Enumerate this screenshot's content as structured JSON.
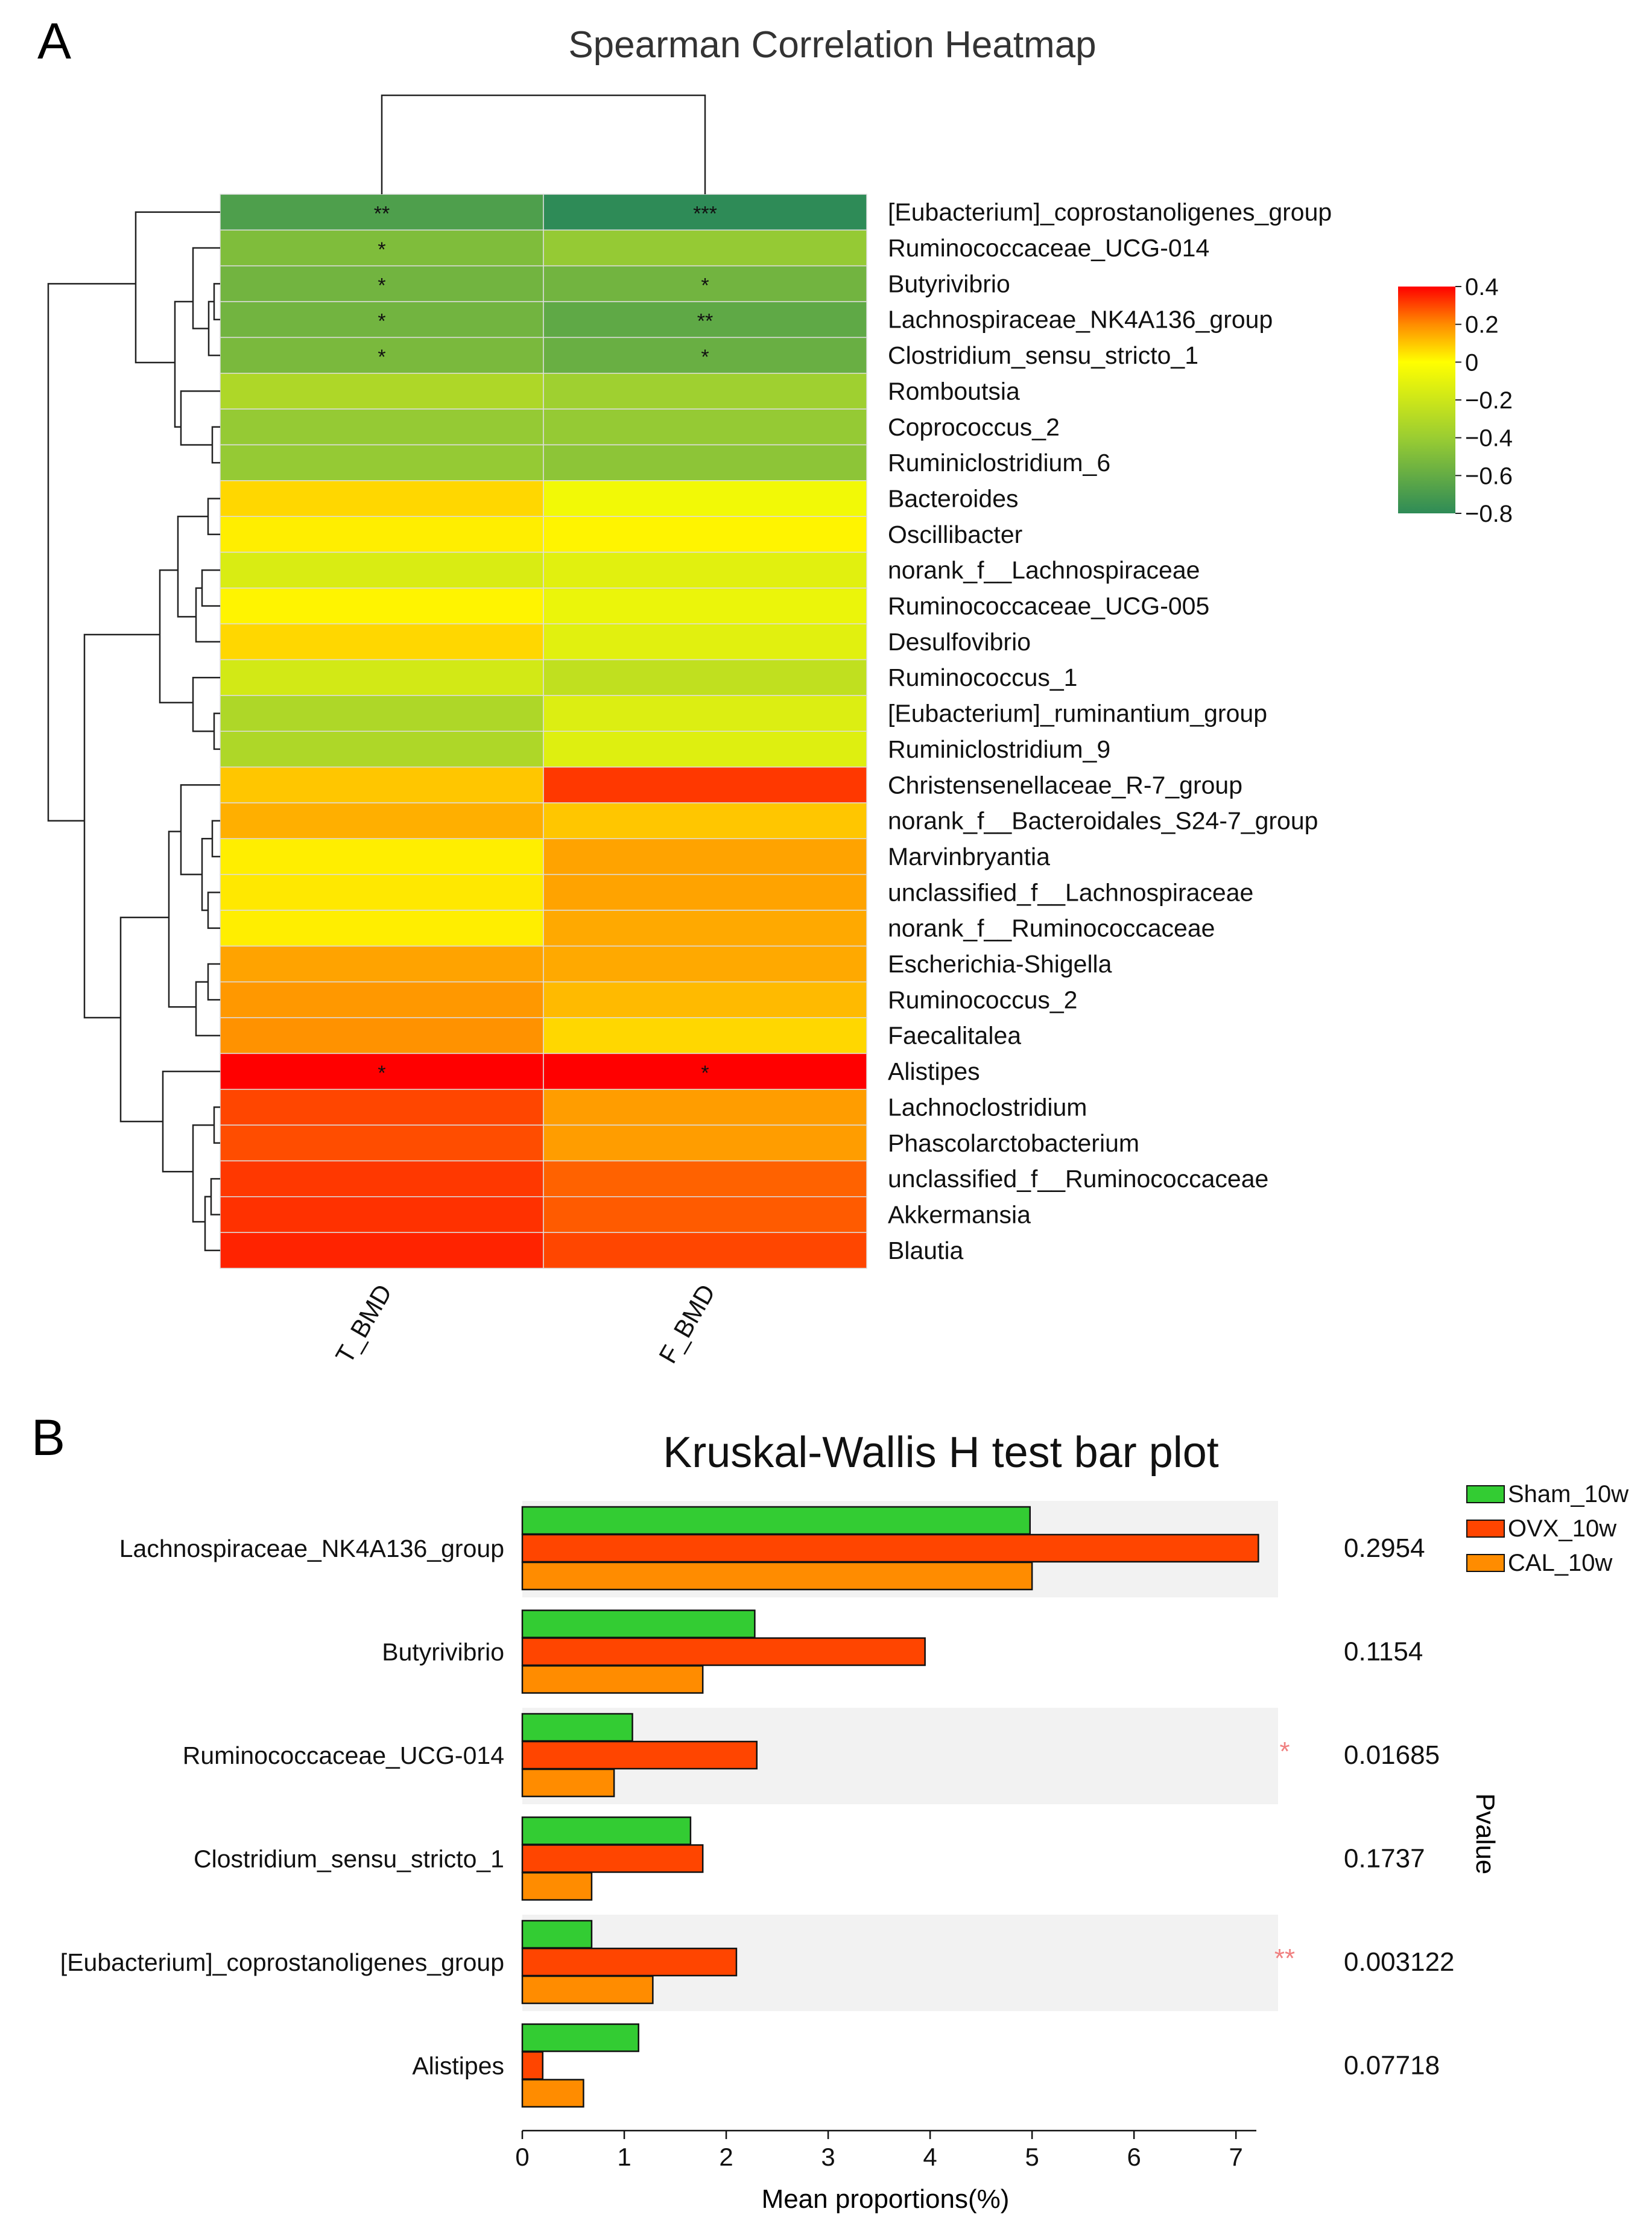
{
  "panel_a_label": "A",
  "panel_b_label": "B",
  "chart_data": [
    {
      "type": "heatmap",
      "title": "Spearman Correlation Heatmap",
      "columns": [
        "T_BMD",
        "F_BMD"
      ],
      "rows": [
        "[Eubacterium]_coprostanoligenes_group",
        "Ruminococcaceae_UCG-014",
        "Butyrivibrio",
        "Lachnospiraceae_NK4A136_group",
        "Clostridium_sensu_stricto_1",
        "Romboutsia",
        "Coprococcus_2",
        "Ruminiclostridium_6",
        "Bacteroides",
        "Oscillibacter",
        "norank_f__Lachnospiraceae",
        "Ruminococcaceae_UCG-005",
        "Desulfovibrio",
        "Ruminococcus_1",
        "[Eubacterium]_ruminantium_group",
        "Ruminiclostridium_9",
        "Christensenellaceae_R-7_group",
        "norank_f__Bacteroidales_S24-7_group",
        "Marvinbryantia",
        "unclassified_f__Lachnospiraceae",
        "norank_f__Ruminococcaceae",
        "Escherichia-Shigella",
        "Ruminococcus_2",
        "Faecalitalea",
        "Alistipes",
        "Lachnoclostridium",
        "Phascolarctobacterium",
        "unclassified_f__Ruminococcaceae",
        "Akkermansia",
        "Blautia"
      ],
      "values": [
        [
          -0.68,
          -0.8
        ],
        [
          -0.5,
          -0.42
        ],
        [
          -0.55,
          -0.55
        ],
        [
          -0.55,
          -0.62
        ],
        [
          -0.52,
          -0.58
        ],
        [
          -0.32,
          -0.38
        ],
        [
          -0.42,
          -0.42
        ],
        [
          -0.42,
          -0.45
        ],
        [
          0.07,
          -0.05
        ],
        [
          0.03,
          0.02
        ],
        [
          -0.15,
          -0.12
        ],
        [
          0.02,
          -0.08
        ],
        [
          0.07,
          -0.12
        ],
        [
          -0.18,
          -0.25
        ],
        [
          -0.32,
          -0.14
        ],
        [
          -0.32,
          -0.13
        ],
        [
          0.1,
          0.32
        ],
        [
          0.14,
          0.1
        ],
        [
          0.03,
          0.16
        ],
        [
          0.04,
          0.16
        ],
        [
          0.03,
          0.15
        ],
        [
          0.16,
          0.15
        ],
        [
          0.18,
          0.12
        ],
        [
          0.19,
          0.07
        ],
        [
          0.43,
          0.43
        ],
        [
          0.3,
          0.17
        ],
        [
          0.29,
          0.17
        ],
        [
          0.32,
          0.26
        ],
        [
          0.33,
          0.27
        ],
        [
          0.35,
          0.3
        ]
      ],
      "significance": [
        [
          "**",
          "***"
        ],
        [
          "*",
          ""
        ],
        [
          "*",
          "*"
        ],
        [
          "*",
          "**"
        ],
        [
          "*",
          "*"
        ],
        [
          "",
          ""
        ],
        [
          "",
          ""
        ],
        [
          "",
          ""
        ],
        [
          "",
          ""
        ],
        [
          "",
          ""
        ],
        [
          "",
          ""
        ],
        [
          "",
          ""
        ],
        [
          "",
          ""
        ],
        [
          "",
          ""
        ],
        [
          "",
          ""
        ],
        [
          "",
          ""
        ],
        [
          "",
          ""
        ],
        [
          "",
          ""
        ],
        [
          "",
          ""
        ],
        [
          "",
          ""
        ],
        [
          "",
          ""
        ],
        [
          "",
          ""
        ],
        [
          "",
          ""
        ],
        [
          "",
          ""
        ],
        [
          "*",
          "*"
        ],
        [
          "",
          ""
        ],
        [
          "",
          ""
        ],
        [
          "",
          ""
        ],
        [
          "",
          ""
        ],
        [
          "",
          ""
        ]
      ],
      "color_range": [
        -0.8,
        0.4
      ],
      "colorbar_ticks": [
        "0.4",
        "0.2",
        "0",
        "−0.2",
        "−0.4",
        "−0.6",
        "−0.8"
      ],
      "colorbar_tick_values": [
        0.4,
        0.2,
        0,
        -0.2,
        -0.4,
        -0.6,
        -0.8
      ],
      "colors": {
        "low": "#2e8b57",
        "mid_low": "#9acd32",
        "mid": "#ffff00",
        "mid_high": "#ff8c00",
        "high": "#ff0000"
      }
    },
    {
      "type": "bar",
      "orientation": "horizontal",
      "title": "Kruskal-Wallis H test bar plot",
      "xlabel": "Mean proportions(%)",
      "ylabel_right": "Pvalue",
      "xlim": [
        0,
        7.2
      ],
      "xticks": [
        "0",
        "1",
        "2",
        "3",
        "4",
        "5",
        "6",
        "7"
      ],
      "xtick_values": [
        0,
        1,
        2,
        3,
        4,
        5,
        6,
        7
      ],
      "categories": [
        "Lachnospiraceae_NK4A136_group",
        "Butyrivibrio",
        "Ruminococcaceae_UCG-014",
        "Clostridium_sensu_stricto_1",
        "[Eubacterium]_coprostanoligenes_group",
        "Alistipes"
      ],
      "series": [
        {
          "name": "Sham_10w",
          "color": "#33cc33",
          "values": [
            4.98,
            2.28,
            1.08,
            1.65,
            0.68,
            1.14
          ]
        },
        {
          "name": "OVX_10w",
          "color": "#ff4500",
          "values": [
            7.22,
            3.95,
            2.3,
            1.77,
            2.1,
            0.2
          ]
        },
        {
          "name": "CAL_10w",
          "color": "#ff8c00",
          "values": [
            5.0,
            1.77,
            0.9,
            0.68,
            1.28,
            0.6
          ]
        }
      ],
      "pvalues": [
        "0.2954",
        "0.1154",
        "0.01685",
        "0.1737",
        "0.003122",
        "0.07718"
      ],
      "significance": [
        "",
        "",
        "*",
        "",
        "**",
        ""
      ],
      "significance_color": "#f08080",
      "shaded_rows": [
        true,
        false,
        true,
        false,
        true,
        false
      ],
      "shade_color": "#f2f2f2",
      "legend_position": "top-right"
    }
  ]
}
